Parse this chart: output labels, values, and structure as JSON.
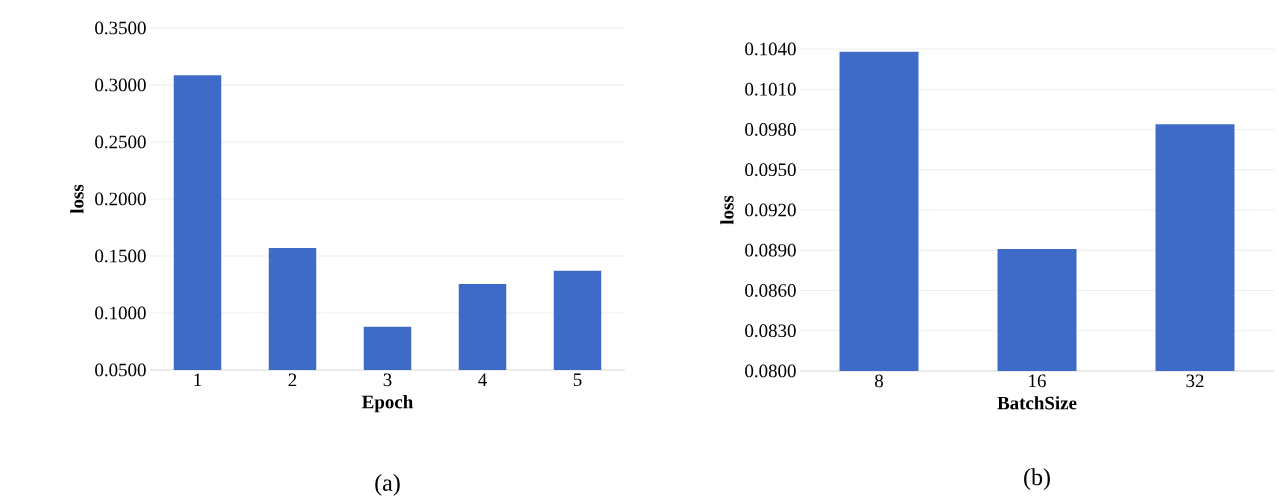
{
  "chart_data": [
    {
      "type": "bar",
      "xlabel": "Epoch",
      "ylabel": "loss",
      "annotations": [
        "(a)"
      ],
      "categories": [
        "1",
        "2",
        "3",
        "4",
        "5"
      ],
      "values": [
        0.3085,
        0.157,
        0.088,
        0.1255,
        0.137
      ],
      "color": "#3f6bc8",
      "ylim": [
        0.05,
        0.35
      ],
      "yticks": [
        {
          "value": 0.05,
          "label": "0.0500"
        },
        {
          "value": 0.1,
          "label": "0.1000"
        },
        {
          "value": 0.15,
          "label": "0.1500"
        },
        {
          "value": 0.2,
          "label": "0.2000"
        },
        {
          "value": 0.25,
          "label": "0.2500"
        },
        {
          "value": 0.3,
          "label": "0.3000"
        },
        {
          "value": 0.35,
          "label": "0.3500"
        }
      ],
      "grid": "y"
    },
    {
      "type": "bar",
      "xlabel": "BatchSize",
      "ylabel": "loss",
      "annotations": [
        "(b)"
      ],
      "categories": [
        "8",
        "16",
        "32"
      ],
      "values": [
        0.1038,
        0.0891,
        0.0984
      ],
      "color": "#3f6bc8",
      "ylim": [
        0.08,
        0.104
      ],
      "yticks": [
        {
          "value": 0.08,
          "label": "0.0800"
        },
        {
          "value": 0.083,
          "label": "0.0830"
        },
        {
          "value": 0.086,
          "label": "0.0860"
        },
        {
          "value": 0.089,
          "label": "0.0890"
        },
        {
          "value": 0.092,
          "label": "0.0920"
        },
        {
          "value": 0.095,
          "label": "0.0950"
        },
        {
          "value": 0.098,
          "label": "0.0980"
        },
        {
          "value": 0.101,
          "label": "0.1010"
        },
        {
          "value": 0.104,
          "label": "0.1040"
        }
      ],
      "grid": "y"
    }
  ]
}
